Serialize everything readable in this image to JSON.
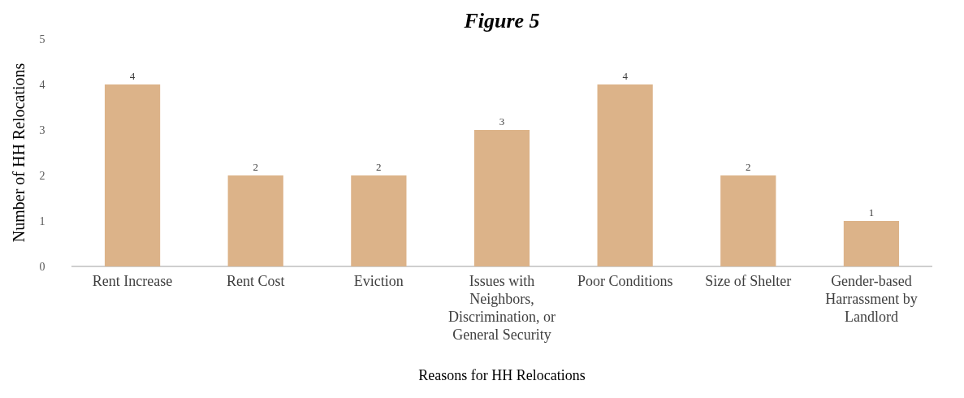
{
  "chart_data": {
    "type": "bar",
    "title": "Figure 5",
    "xlabel": "Reasons for HH Relocations",
    "ylabel": "Number of HH Relocations",
    "categories": [
      "Rent Increase",
      "Rent Cost",
      "Eviction",
      "Issues with Neighbors, Discrimination, or General Security",
      "Poor Conditions",
      "Size of Shelter",
      "Gender-based Harrassment by Landlord"
    ],
    "values": [
      4,
      2,
      2,
      3,
      4,
      2,
      1
    ],
    "color": "#dcb389",
    "ylim": [
      0,
      5
    ],
    "yticks": [
      0,
      1,
      2,
      3,
      4,
      5
    ],
    "data_labels": true
  }
}
